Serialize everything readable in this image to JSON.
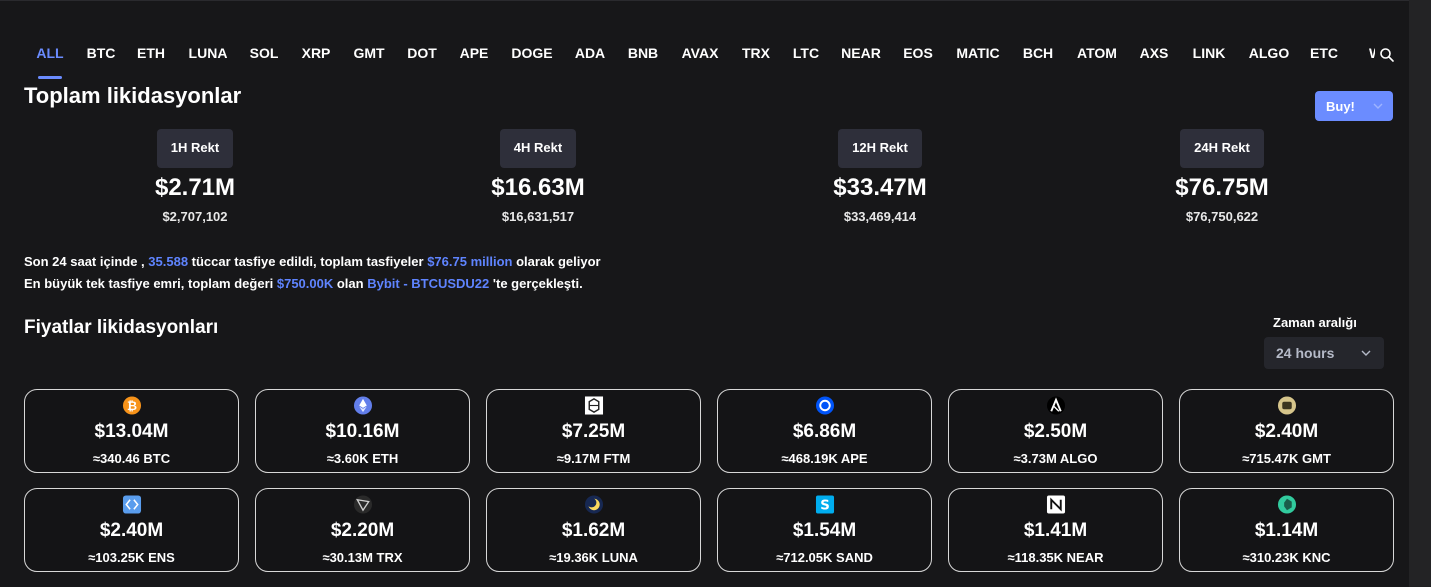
{
  "tabs": [
    "ALL",
    "BTC",
    "ETH",
    "LUNA",
    "SOL",
    "XRP",
    "GMT",
    "DOT",
    "APE",
    "DOGE",
    "ADA",
    "BNB",
    "AVAX",
    "TRX",
    "LTC",
    "NEAR",
    "EOS",
    "MATIC",
    "BCH",
    "ATOM",
    "AXS",
    "LINK",
    "ALGO",
    "ETC",
    "W"
  ],
  "active_tab": "ALL",
  "title": "Toplam likidasyonlar",
  "buy_button": "Buy!",
  "stats": [
    {
      "label": "1H Rekt",
      "big": "$2.71M",
      "small": "$2,707,102"
    },
    {
      "label": "4H Rekt",
      "big": "$16.63M",
      "small": "$16,631,517"
    },
    {
      "label": "12H Rekt",
      "big": "$33.47M",
      "small": "$33,469,414"
    },
    {
      "label": "24H Rekt",
      "big": "$76.75M",
      "small": "$76,750,622"
    }
  ],
  "summary": {
    "l1_a": "Son 24 saat içinde , ",
    "l1_traders": "35.588",
    "l1_b": " tüccar tasfiye edildi, toplam tasfiyeler ",
    "l1_total": "$76.75 million",
    "l1_c": " olarak geliyor",
    "l2_a": "En büyük tek tasfiye emri, toplam değeri ",
    "l2_value": "$750.00K",
    "l2_b": " olan ",
    "l2_pair": "Bybit - BTCUSDU22",
    "l2_c": " 'te gerçekleşti."
  },
  "section_title": "Fiyatlar likidasyonları",
  "time_range": {
    "label": "Zaman aralığı",
    "value": "24 hours"
  },
  "cards": [
    {
      "icon": "bitcoin-icon",
      "color": "#f7931a",
      "amount": "$13.04M",
      "qty": "≈340.46 BTC"
    },
    {
      "icon": "ethereum-icon",
      "color": "#627eea",
      "amount": "$10.16M",
      "qty": "≈3.60K ETH"
    },
    {
      "icon": "fantom-icon",
      "color": "#ffffff",
      "amount": "$7.25M",
      "qty": "≈9.17M FTM"
    },
    {
      "icon": "apecoin-icon",
      "color": "#0054f9",
      "amount": "$6.86M",
      "qty": "≈468.19K APE"
    },
    {
      "icon": "algorand-icon",
      "color": "#000000",
      "amount": "$2.50M",
      "qty": "≈3.73M ALGO"
    },
    {
      "icon": "stepn-icon",
      "color": "#d6c58b",
      "amount": "$2.40M",
      "qty": "≈715.47K GMT"
    },
    {
      "icon": "ens-icon",
      "color": "#5a9ded",
      "amount": "$2.40M",
      "qty": "≈103.25K ENS"
    },
    {
      "icon": "tron-icon",
      "color": "#2a2a2a",
      "amount": "$2.20M",
      "qty": "≈30.13M TRX"
    },
    {
      "icon": "terra-luna-icon",
      "color": "#f9d85e",
      "amount": "$1.62M",
      "qty": "≈19.36K LUNA"
    },
    {
      "icon": "sandbox-icon",
      "color": "#00adef",
      "amount": "$1.54M",
      "qty": "≈712.05K SAND"
    },
    {
      "icon": "near-icon",
      "color": "#ffffff",
      "amount": "$1.41M",
      "qty": "≈118.35K NEAR"
    },
    {
      "icon": "kyber-network-icon",
      "color": "#31cb9e",
      "amount": "$1.14M",
      "qty": "≈310.23K KNC"
    }
  ]
}
